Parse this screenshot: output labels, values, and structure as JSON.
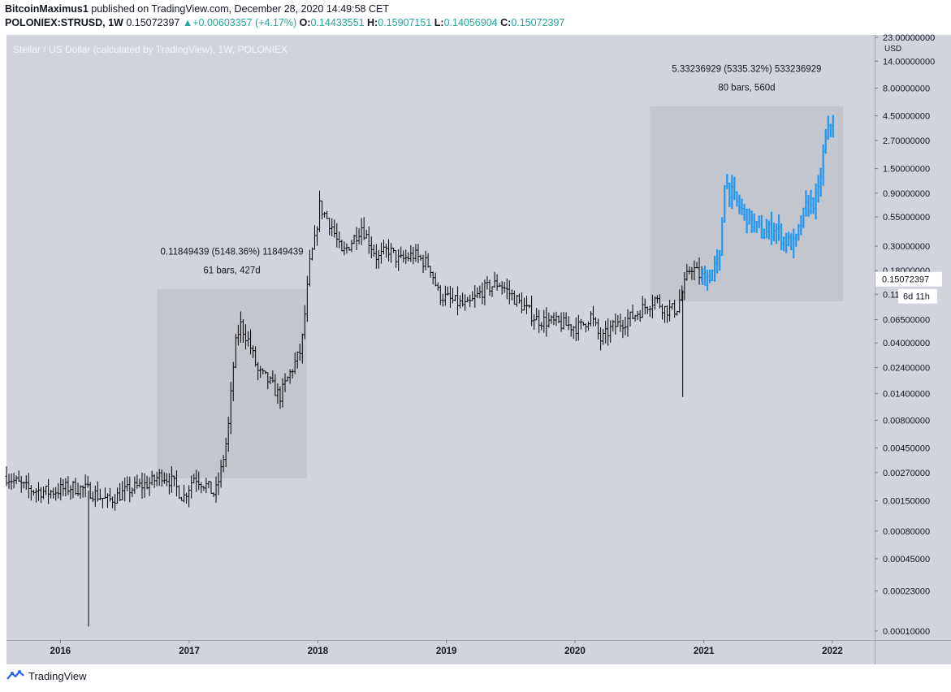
{
  "header": {
    "author": "BitcoinMaximus1",
    "published": " published on TradingView.com, December 28, 2020 14:49:58 CET",
    "symbol": "POLONIEX:STRUSD, 1W",
    "price": "0.15072397",
    "change_arrow": "▲",
    "change": "+0.00603357 (+4.17%)",
    "o_label": "O:",
    "o_value": "0.14433551",
    "h_label": "H:",
    "h_value": "0.15907151",
    "l_label": "L:",
    "l_value": "0.14056904",
    "c_label": "C:",
    "c_value": "0.15072397"
  },
  "footer": {
    "brand": "TradingView"
  },
  "colors": {
    "plot_bg": "#d1d4dc",
    "candle": "#000000",
    "projection": "#2196f3",
    "box_fill": "#bfc1c8",
    "price_label_bg": "#ffffff",
    "up": "#26a69a"
  },
  "chart_data": {
    "type": "ohlc",
    "title": "Stellar / US Dollar (calculated by TradingView), 1W, POLONIEX",
    "y_unit": "USD",
    "y_scale": "log",
    "ylim": [
      0.0001,
      23.0
    ],
    "xlim": [
      "2015-08-01",
      "2022-05-01"
    ],
    "y_ticks": [
      {
        "value": 23.0,
        "label": "23.00000000"
      },
      {
        "value": 14.0,
        "label": "14.00000000"
      },
      {
        "value": 8.0,
        "label": "8.00000000"
      },
      {
        "value": 4.5,
        "label": "4.50000000"
      },
      {
        "value": 2.7,
        "label": "2.70000000"
      },
      {
        "value": 1.5,
        "label": "1.50000000"
      },
      {
        "value": 0.9,
        "label": "0.90000000"
      },
      {
        "value": 0.55,
        "label": "0.55000000"
      },
      {
        "value": 0.3,
        "label": "0.30000000"
      },
      {
        "value": 0.18,
        "label": "0.18000000"
      },
      {
        "value": 0.11,
        "label": "0.11000000"
      },
      {
        "value": 0.065,
        "label": "0.06500000"
      },
      {
        "value": 0.04,
        "label": "0.04000000"
      },
      {
        "value": 0.024,
        "label": "0.02400000"
      },
      {
        "value": 0.014,
        "label": "0.01400000"
      },
      {
        "value": 0.008,
        "label": "0.00800000"
      },
      {
        "value": 0.0045,
        "label": "0.00450000"
      },
      {
        "value": 0.0027,
        "label": "0.00270000"
      },
      {
        "value": 0.0015,
        "label": "0.00150000"
      },
      {
        "value": 0.0008,
        "label": "0.00080000"
      },
      {
        "value": 0.00045,
        "label": "0.00045000"
      },
      {
        "value": 0.00023,
        "label": "0.00023000"
      },
      {
        "value": 0.0001,
        "label": "0.00010000"
      }
    ],
    "x_ticks": [
      {
        "date": "2016-01-01",
        "label": "2016"
      },
      {
        "date": "2017-01-01",
        "label": "2017"
      },
      {
        "date": "2018-01-01",
        "label": "2018"
      },
      {
        "date": "2019-01-01",
        "label": "2019"
      },
      {
        "date": "2020-01-01",
        "label": "2020"
      },
      {
        "date": "2021-01-01",
        "label": "2021"
      },
      {
        "date": "2022-01-01",
        "label": "2022"
      }
    ],
    "price_path": [
      [
        "2015-08-01",
        0.0025
      ],
      [
        "2015-10-01",
        0.0019
      ],
      [
        "2015-12-01",
        0.0018
      ],
      [
        "2016-02-01",
        0.002
      ],
      [
        "2016-03-15",
        0.0019
      ],
      [
        "2016-05-15",
        0.0015
      ],
      [
        "2016-07-15",
        0.0019
      ],
      [
        "2016-09-15",
        0.0022
      ],
      [
        "2016-10-15",
        0.0026
      ],
      [
        "2016-11-15",
        0.0022
      ],
      [
        "2016-12-15",
        0.0016
      ],
      [
        "2017-01-15",
        0.0025
      ],
      [
        "2017-02-15",
        0.0021
      ],
      [
        "2017-03-15",
        0.0017
      ],
      [
        "2017-04-01",
        0.0028
      ],
      [
        "2017-04-20",
        0.006
      ],
      [
        "2017-05-10",
        0.035
      ],
      [
        "2017-05-25",
        0.06
      ],
      [
        "2017-06-20",
        0.04
      ],
      [
        "2017-07-15",
        0.022
      ],
      [
        "2017-08-15",
        0.018
      ],
      [
        "2017-09-15",
        0.013
      ],
      [
        "2017-10-10",
        0.02
      ],
      [
        "2017-11-15",
        0.035
      ],
      [
        "2017-12-10",
        0.22
      ],
      [
        "2017-12-25",
        0.35
      ],
      [
        "2018-01-05",
        0.7
      ],
      [
        "2018-02-10",
        0.45
      ],
      [
        "2018-03-10",
        0.25
      ],
      [
        "2018-04-10",
        0.34
      ],
      [
        "2018-05-05",
        0.45
      ],
      [
        "2018-06-20",
        0.23
      ],
      [
        "2018-07-20",
        0.28
      ],
      [
        "2018-08-20",
        0.22
      ],
      [
        "2018-10-01",
        0.25
      ],
      [
        "2018-11-15",
        0.2
      ],
      [
        "2018-12-10",
        0.11
      ],
      [
        "2019-01-20",
        0.095
      ],
      [
        "2019-03-01",
        0.085
      ],
      [
        "2019-04-15",
        0.12
      ],
      [
        "2019-05-30",
        0.14
      ],
      [
        "2019-07-15",
        0.1
      ],
      [
        "2019-09-15",
        0.065
      ],
      [
        "2019-11-15",
        0.06
      ],
      [
        "2020-01-15",
        0.055
      ],
      [
        "2020-02-15",
        0.07
      ],
      [
        "2020-03-15",
        0.042
      ],
      [
        "2020-04-15",
        0.055
      ],
      [
        "2020-06-15",
        0.07
      ],
      [
        "2020-08-15",
        0.1
      ],
      [
        "2020-09-15",
        0.08
      ],
      [
        "2020-10-15",
        0.08
      ],
      [
        "2020-11-25",
        0.2
      ],
      [
        "2020-12-28",
        0.1507
      ]
    ],
    "wicks": [
      {
        "date": "2016-03-21",
        "low": 0.00011
      },
      {
        "date": "2020-11-02",
        "low": 0.013
      }
    ],
    "projection_start": "2020-12-28",
    "projection_end": "2022-01-05",
    "projection_path": [
      [
        "2020-12-28",
        0.155
      ],
      [
        "2021-01-15",
        0.16
      ],
      [
        "2021-02-15",
        0.22
      ],
      [
        "2021-03-01",
        1.2
      ],
      [
        "2021-04-01",
        0.75
      ],
      [
        "2021-05-15",
        0.5
      ],
      [
        "2021-06-20",
        0.38
      ],
      [
        "2021-07-20",
        0.45
      ],
      [
        "2021-08-15",
        0.35
      ],
      [
        "2021-09-15",
        0.3
      ],
      [
        "2021-10-20",
        0.7
      ],
      [
        "2021-11-20",
        0.8
      ],
      [
        "2021-12-10",
        2.5
      ],
      [
        "2022-01-05",
        4.8
      ]
    ],
    "measurements": [
      {
        "date_from": "2016-10-01",
        "date_to": "2017-12-01",
        "price_low": 0.0024,
        "price_high": 0.123,
        "line1": "0.11849439 (5148.36%) 11849439",
        "line2": "61 bars, 427d"
      },
      {
        "date_from": "2020-08-01",
        "date_to": "2022-02-01",
        "price_low": 0.095,
        "price_high": 5.5,
        "line1": "5.33236929 (5335.32%) 533236929",
        "line2": "80 bars, 560d"
      }
    ],
    "last_price": {
      "value": 0.15072397,
      "label": "0.15072397"
    },
    "countdown": {
      "label": "6d 11h"
    }
  }
}
